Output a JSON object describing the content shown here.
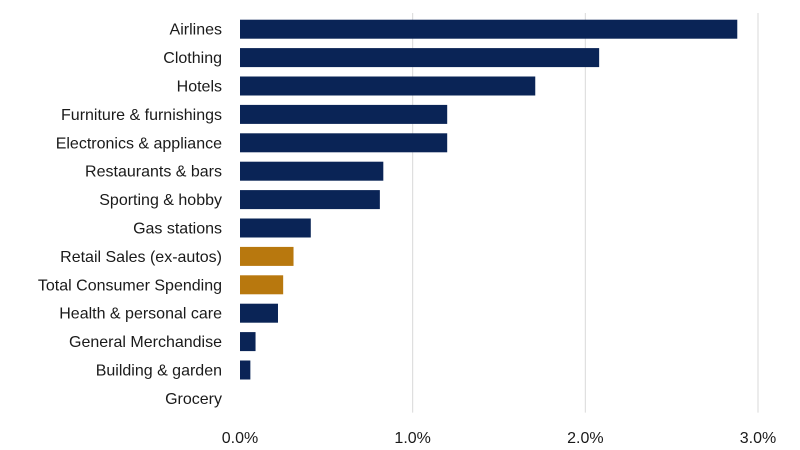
{
  "chart_data": {
    "type": "bar",
    "orientation": "horizontal",
    "categories": [
      "Airlines",
      "Clothing",
      "Hotels",
      "Furniture & furnishings",
      "Electronics & appliance",
      "Restaurants & bars",
      "Sporting & hobby",
      "Gas stations",
      "Retail Sales (ex-autos)",
      "Total Consumer Spending",
      "Health & personal care",
      "General Merchandise",
      "Building & garden",
      "Grocery"
    ],
    "values": [
      2.88,
      2.08,
      1.71,
      1.2,
      1.2,
      0.83,
      0.81,
      0.41,
      0.31,
      0.25,
      0.22,
      0.09,
      0.06,
      0.0
    ],
    "highlight": [
      false,
      false,
      false,
      false,
      false,
      false,
      false,
      false,
      true,
      true,
      false,
      false,
      false,
      false
    ],
    "xlim": [
      0,
      3
    ],
    "xticks": [
      0,
      1,
      2,
      3
    ],
    "xtick_labels": [
      "0.0%",
      "1.0%",
      "2.0%",
      "3.0%"
    ],
    "grid": "vertical",
    "legend": "none",
    "colors": {
      "default": "#0a2456",
      "highlight": "#b8780e"
    }
  }
}
